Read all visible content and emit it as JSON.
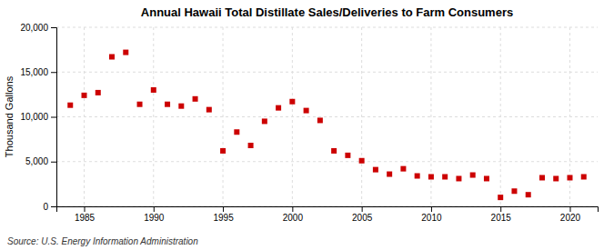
{
  "chart_data": {
    "type": "scatter",
    "title": "Annual Hawaii Total Distillate Sales/Deliveries to Farm Consumers",
    "ylabel": "Thousand Gallons",
    "annotations": [
      "Source: U.S. Energy Information Administration"
    ],
    "color": "#cc0000",
    "marker": "square",
    "grid": true,
    "xlim": [
      1983,
      2022
    ],
    "xticks": [
      1985,
      1990,
      1995,
      2000,
      2005,
      2010,
      2015,
      2020
    ],
    "ylim": [
      0,
      20000
    ],
    "yticks": [
      0,
      {
        "value": 5000,
        "label": "5,000"
      },
      {
        "value": 10000,
        "label": "10,000"
      },
      {
        "value": 15000,
        "label": "15,000"
      },
      {
        "value": 20000,
        "label": "20,000"
      }
    ],
    "x": [
      1984,
      1985,
      1986,
      1987,
      1988,
      1989,
      1990,
      1991,
      1992,
      1993,
      1994,
      1995,
      1996,
      1997,
      1998,
      1999,
      2000,
      2001,
      2002,
      2003,
      2004,
      2005,
      2006,
      2007,
      2008,
      2009,
      2010,
      2011,
      2012,
      2013,
      2014,
      2015,
      2016,
      2017,
      2018,
      2019,
      2020,
      2021
    ],
    "values": [
      11300,
      12400,
      12700,
      16700,
      17200,
      11400,
      13000,
      11400,
      11200,
      12000,
      10800,
      6200,
      8300,
      6800,
      9500,
      11000,
      11700,
      10700,
      9600,
      6200,
      5700,
      5100,
      4100,
      3600,
      4200,
      3400,
      3300,
      3300,
      3100,
      3500,
      3100,
      1000,
      1700,
      1300,
      3200,
      3100,
      3200,
      3300
    ]
  }
}
